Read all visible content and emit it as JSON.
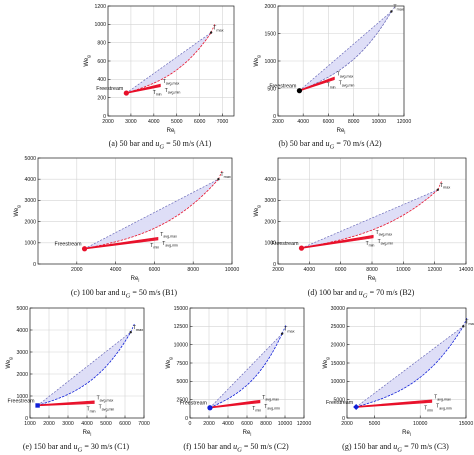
{
  "colors": {
    "envelope_fill": "#dcdcf7",
    "envelope_edge": "#6a6ab8",
    "red": "#e8102a",
    "blue": "#1020d8",
    "grid": "#d4d4d4",
    "axis": "#222222"
  },
  "captions": [
    {
      "pre": "(a) 50 bar and ",
      "post": " = 50 m/s (A1)"
    },
    {
      "pre": "(b) 50 bar and ",
      "post": " = 70 m/s (A2)"
    },
    {
      "pre": "(c) 100 bar and ",
      "post": " = 50 m/s (B1)"
    },
    {
      "pre": "(d) 100 bar and ",
      "post": " = 70 m/s (B2)"
    },
    {
      "pre": "(e) 150 bar and ",
      "post": " = 30 m/s (C1)"
    },
    {
      "pre": "(f) 150 bar and ",
      "post": " = 50 m/s (C2)"
    },
    {
      "pre": "(g) 150 bar and ",
      "post": " = 70 m/s (C3)"
    }
  ],
  "caption_var": "u",
  "caption_sub": "G",
  "chart_data": [
    {
      "type": "line",
      "xlabel": "Re_l",
      "ylabel": "We_g",
      "xlim": [
        2000,
        7500
      ],
      "ylim": [
        0,
        1200
      ],
      "xticks": [
        2000,
        3000,
        4000,
        5000,
        6000,
        7000
      ],
      "yticks": [
        0,
        200,
        400,
        600,
        800,
        1000,
        1200
      ],
      "grid": true,
      "point_color": "red",
      "freestream": [
        2800,
        250
      ],
      "tmax": [
        6500,
        910
      ],
      "tavg": [
        4300,
        330
      ],
      "curve": {
        "a": 0.45
      },
      "labels": {
        "freestream": "Freestream",
        "tmax": "T_max",
        "tavgmax": "T_avg,max",
        "tmin": "T_min",
        "tavgmin": "T_avg,min"
      }
    },
    {
      "type": "line",
      "xlabel": "Re_l",
      "ylabel": "We_g",
      "xlim": [
        2000,
        12000
      ],
      "ylim": [
        0,
        2000
      ],
      "xticks": [
        2000,
        4000,
        6000,
        8000,
        10000,
        12000
      ],
      "yticks": [
        0,
        500,
        1000,
        1500,
        2000
      ],
      "grid": true,
      "point_color": "black",
      "freestream": [
        3700,
        460
      ],
      "tmax": [
        11000,
        1900
      ],
      "tavg": [
        6500,
        680
      ],
      "curve": {
        "a": 0.5
      },
      "labels": {
        "freestream": "Freestream",
        "tmax": "T_max",
        "tavgmax": "T_avg,max",
        "tmin": "T_min",
        "tavgmin": "T_avg,min"
      }
    },
    {
      "type": "line",
      "xlabel": "Re_l",
      "ylabel": "We_g",
      "xlim": [
        0,
        10000
      ],
      "ylim": [
        0,
        5000
      ],
      "xticks": [
        2000,
        4000,
        6000,
        8000,
        10000
      ],
      "yticks": [
        0,
        1000,
        2000,
        3000,
        4000,
        5000
      ],
      "grid": true,
      "point_color": "red",
      "freestream": [
        2400,
        720
      ],
      "tmax": [
        9300,
        4000
      ],
      "tavg": [
        6200,
        1180
      ],
      "curve": {
        "a": 0.4
      },
      "labels": {
        "freestream": "Freestream",
        "tmax": "T_max",
        "tavgmax": "T_avg,max",
        "tmin": "T_min",
        "tavgmin": "T_avg,min"
      }
    },
    {
      "type": "line",
      "xlabel": "Re_l",
      "ylabel": "We_g",
      "xlim": [
        2000,
        14000
      ],
      "ylim": [
        0,
        5000
      ],
      "xticks": [
        2000,
        4000,
        6000,
        8000,
        10000,
        12000,
        14000
      ],
      "yticks": [
        0,
        1000,
        2000,
        3000,
        4000
      ],
      "grid": true,
      "point_color": "red",
      "freestream": [
        3500,
        750
      ],
      "tmax": [
        12200,
        3500
      ],
      "tavg": [
        8100,
        1280
      ],
      "curve": {
        "a": 0.45
      },
      "labels": {
        "freestream": "Freestream",
        "tmax": "T_max",
        "tavgmax": "T_avg,max",
        "tmin": "T_min",
        "tavgmin": "T_avg,min"
      }
    },
    {
      "type": "line",
      "xlabel": "Re_l",
      "ylabel": "We_g",
      "xlim": [
        1000,
        7000
      ],
      "ylim": [
        0,
        5000
      ],
      "xticks": [
        1000,
        2000,
        3000,
        4000,
        5000,
        6000,
        7000
      ],
      "yticks": [
        0,
        1000,
        2000,
        3000,
        4000,
        5000
      ],
      "grid": true,
      "point_color": "blue",
      "freestream": [
        1400,
        570
      ],
      "tmax": [
        6300,
        3900
      ],
      "tavg": [
        4400,
        700
      ],
      "curve": {
        "a": 0.4
      },
      "labels": {
        "freestream": "Freestream",
        "tmax": "T_max",
        "tavgmax": "T_avg,max",
        "tmin": "T_min",
        "tavgmin": "T_avg,min"
      }
    },
    {
      "type": "line",
      "xlabel": "Re_l",
      "ylabel": "We_g",
      "xlim": [
        0,
        12000
      ],
      "ylim": [
        0,
        15000
      ],
      "xticks": [
        0,
        2000,
        4000,
        6000,
        8000,
        10000,
        12000
      ],
      "yticks": [
        0,
        2500,
        5000,
        7500,
        10000,
        12500,
        15000
      ],
      "grid": true,
      "point_color": "blue",
      "freestream": [
        2100,
        1400
      ],
      "tmax": [
        9700,
        11500
      ],
      "tavg": [
        7400,
        2200
      ],
      "curve": {
        "a": 0.45
      },
      "labels": {
        "freestream": "Freestream",
        "tmax": "T_max",
        "tavgmax": "T_avg,max",
        "tmin": "T_min",
        "tavgmin": "T_avg,min"
      }
    },
    {
      "type": "line",
      "xlabel": "Re_l",
      "ylabel": "We_g",
      "xlim": [
        2000,
        15000
      ],
      "ylim": [
        0,
        30000
      ],
      "xticks": [
        2000,
        5000,
        10000,
        15000
      ],
      "yticks": [
        0,
        5000,
        10000,
        15000,
        20000,
        25000,
        30000
      ],
      "grid": true,
      "point_color": "blue",
      "freestream": [
        3000,
        3000
      ],
      "tmax": [
        14700,
        25000
      ],
      "tavg": [
        11300,
        4500
      ],
      "curve": {
        "a": 0.4
      },
      "labels": {
        "freestream": "Freestream",
        "tmax": "T_max",
        "tavgmax": "T_avg,max",
        "tmin": "T_min",
        "tavgmin": "T_avg,min"
      }
    }
  ]
}
